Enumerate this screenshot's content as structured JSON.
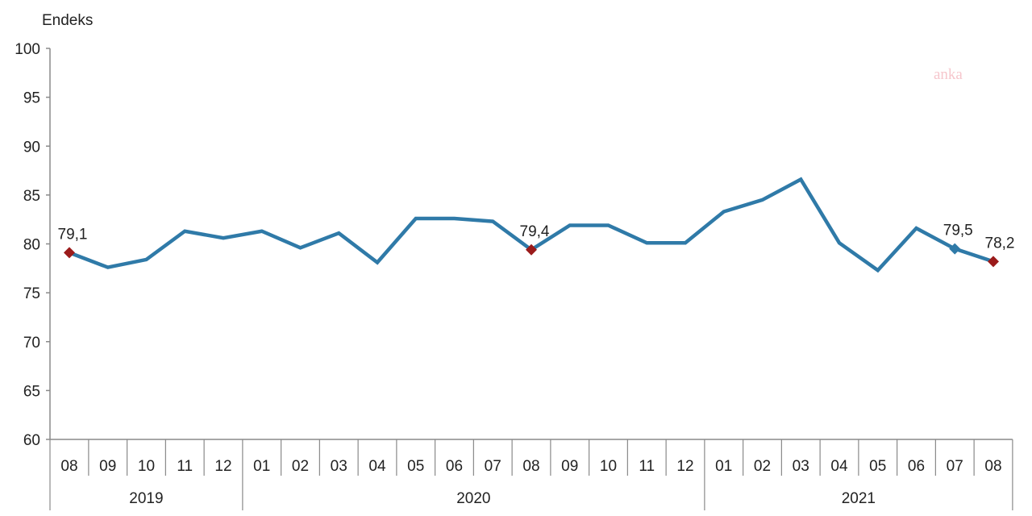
{
  "chart_data": {
    "type": "line",
    "title": "",
    "xlabel": "",
    "ylabel": "Endeks",
    "ylim": [
      60,
      100
    ],
    "yticks": [
      60,
      65,
      70,
      75,
      80,
      85,
      90,
      95,
      100
    ],
    "grid": false,
    "legend": null,
    "line_color": "#2f7aa8",
    "marker_color": "#9b1b1b",
    "categories": [
      "08",
      "09",
      "10",
      "11",
      "12",
      "01",
      "02",
      "03",
      "04",
      "05",
      "06",
      "07",
      "08",
      "09",
      "10",
      "11",
      "12",
      "01",
      "02",
      "03",
      "04",
      "05",
      "06",
      "07",
      "08"
    ],
    "year_groups": [
      {
        "label": "2019",
        "start": 0,
        "end": 4
      },
      {
        "label": "2020",
        "start": 5,
        "end": 16
      },
      {
        "label": "2021",
        "start": 17,
        "end": 24
      }
    ],
    "series": [
      {
        "name": "Endeks",
        "values": [
          79.1,
          77.6,
          78.4,
          81.3,
          80.6,
          81.3,
          79.6,
          81.1,
          78.1,
          82.6,
          82.6,
          82.3,
          79.4,
          81.9,
          81.9,
          80.1,
          80.1,
          83.3,
          84.5,
          86.6,
          80.1,
          77.3,
          81.6,
          79.5,
          78.2
        ]
      }
    ],
    "annotations": [
      {
        "index": 0,
        "label": "79,1",
        "marker": "red-diamond"
      },
      {
        "index": 12,
        "label": "79,4",
        "marker": "red-diamond"
      },
      {
        "index": 23,
        "label": "79,5",
        "marker": "blue-diamond"
      },
      {
        "index": 24,
        "label": "78,2",
        "marker": "red-diamond"
      }
    ]
  },
  "header": {
    "ylabel": "Endeks"
  },
  "watermark": "anka"
}
